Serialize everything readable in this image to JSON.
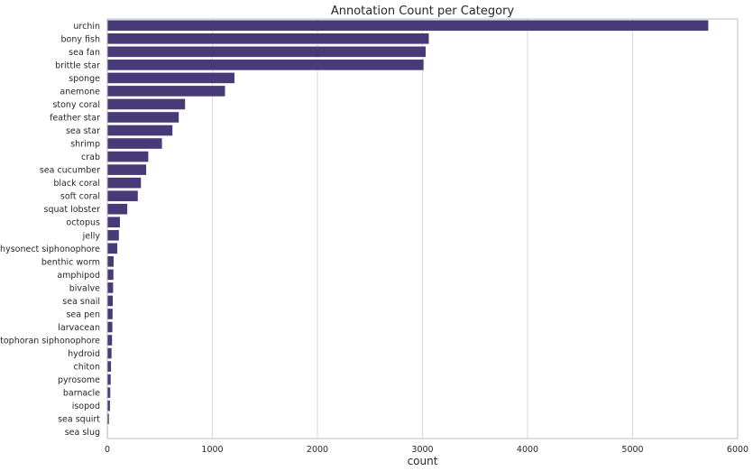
{
  "chart_data": {
    "type": "bar",
    "orientation": "horizontal",
    "title": "Annotation Count per Category",
    "xlabel": "count",
    "ylabel": "",
    "xlim": [
      0,
      6000
    ],
    "xticks": [
      0,
      1000,
      2000,
      3000,
      4000,
      5000,
      6000
    ],
    "grid": true,
    "bar_color": "#483a78",
    "categories": [
      "urchin",
      "bony fish",
      "sea fan",
      "brittle star",
      "sponge",
      "anemone",
      "stony coral",
      "feather star",
      "sea star",
      "shrimp",
      "crab",
      "sea cucumber",
      "black coral",
      "soft coral",
      "squat lobster",
      "octopus",
      "jelly",
      "physonect siphonophore",
      "benthic worm",
      "amphipod",
      "bivalve",
      "sea snail",
      "sea pen",
      "larvacean",
      "cystophoran siphonophore",
      "hydroid",
      "chiton",
      "pyrosome",
      "barnacle",
      "isopod",
      "sea squirt",
      "sea slug"
    ],
    "values": [
      5720,
      3060,
      3030,
      3010,
      1210,
      1120,
      740,
      680,
      620,
      520,
      390,
      370,
      320,
      290,
      190,
      120,
      110,
      95,
      60,
      58,
      55,
      52,
      50,
      48,
      45,
      40,
      35,
      32,
      28,
      25,
      15,
      5
    ]
  }
}
